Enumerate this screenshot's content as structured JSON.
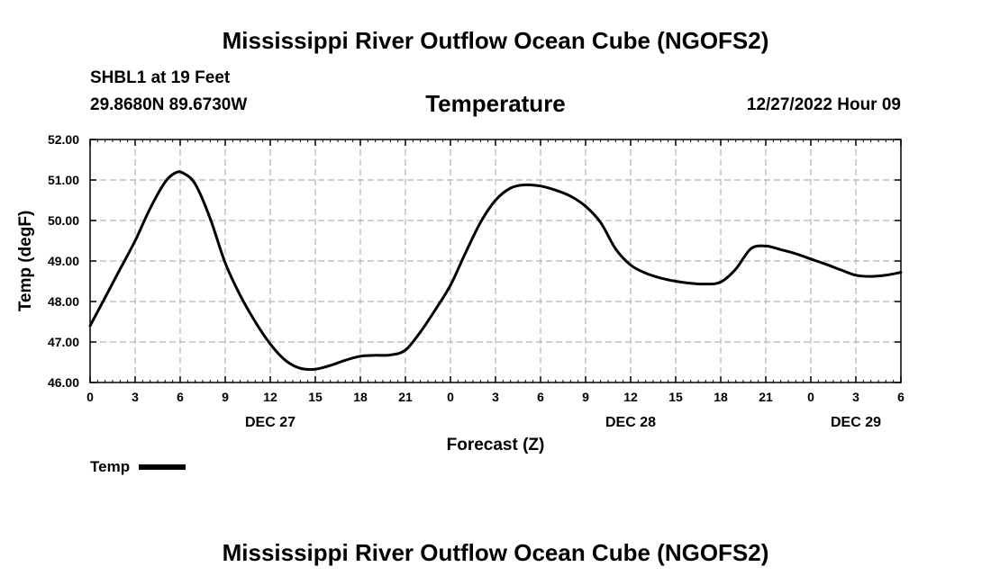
{
  "header": {
    "title": "Mississippi River Outflow Ocean Cube (NGOFS2)",
    "station": "SHBL1 at 19 Feet",
    "coordinates": "29.8680N  89.6730W",
    "variable": "Temperature",
    "run_time": "12/27/2022 Hour 09"
  },
  "footer": {
    "title": "Mississippi River Outflow Ocean Cube (NGOFS2)"
  },
  "chart_data": {
    "type": "line",
    "title": "Temperature",
    "xlabel": "Forecast (Z)",
    "ylabel": "Temp (degF)",
    "xlim": [
      0,
      54
    ],
    "ylim": [
      46.0,
      52.0
    ],
    "grid": true,
    "x_ticks": [
      0,
      3,
      6,
      9,
      12,
      15,
      18,
      21,
      24,
      27,
      30,
      33,
      36,
      39,
      42,
      45,
      48,
      51,
      54
    ],
    "x_tick_labels": [
      "0",
      "3",
      "6",
      "9",
      "12",
      "15",
      "18",
      "21",
      "0",
      "3",
      "6",
      "9",
      "12",
      "15",
      "18",
      "21",
      "0",
      "3",
      "6"
    ],
    "date_labels": [
      {
        "x": 12,
        "label": "DEC 27"
      },
      {
        "x": 36,
        "label": "DEC 28"
      },
      {
        "x": 51,
        "label": "DEC 29"
      }
    ],
    "y_ticks": [
      46,
      47,
      48,
      49,
      50,
      51,
      52
    ],
    "y_tick_labels": [
      "46.00",
      "47.00",
      "48.00",
      "49.00",
      "50.00",
      "51.00",
      "52.00"
    ],
    "legend": {
      "label": "Temp",
      "position": "bottom-left"
    },
    "series": [
      {
        "name": "Temp",
        "color": "#000000",
        "x": [
          0,
          1,
          2,
          3,
          4,
          5,
          5.7,
          6.2,
          7,
          8,
          9,
          10,
          11,
          12,
          13,
          14,
          15,
          16,
          17,
          18,
          19,
          20,
          21,
          22,
          23,
          24,
          25,
          26,
          27,
          28,
          29,
          30,
          31,
          32,
          33,
          34,
          35,
          36,
          37,
          38,
          39,
          40,
          41,
          42,
          43,
          44,
          45,
          46,
          47,
          48,
          49,
          50,
          51,
          52,
          53,
          54
        ],
        "values": [
          47.4,
          48.1,
          48.8,
          49.5,
          50.3,
          50.95,
          51.18,
          51.17,
          50.9,
          50.05,
          48.95,
          48.15,
          47.5,
          46.95,
          46.55,
          46.35,
          46.33,
          46.42,
          46.55,
          46.65,
          46.67,
          46.68,
          46.8,
          47.25,
          47.8,
          48.4,
          49.2,
          49.95,
          50.5,
          50.8,
          50.88,
          50.85,
          50.75,
          50.6,
          50.35,
          49.95,
          49.3,
          48.9,
          48.7,
          48.58,
          48.5,
          48.45,
          48.43,
          48.48,
          48.8,
          49.3,
          49.37,
          49.28,
          49.18,
          49.05,
          48.92,
          48.78,
          48.65,
          48.62,
          48.65,
          48.72
        ]
      }
    ]
  }
}
